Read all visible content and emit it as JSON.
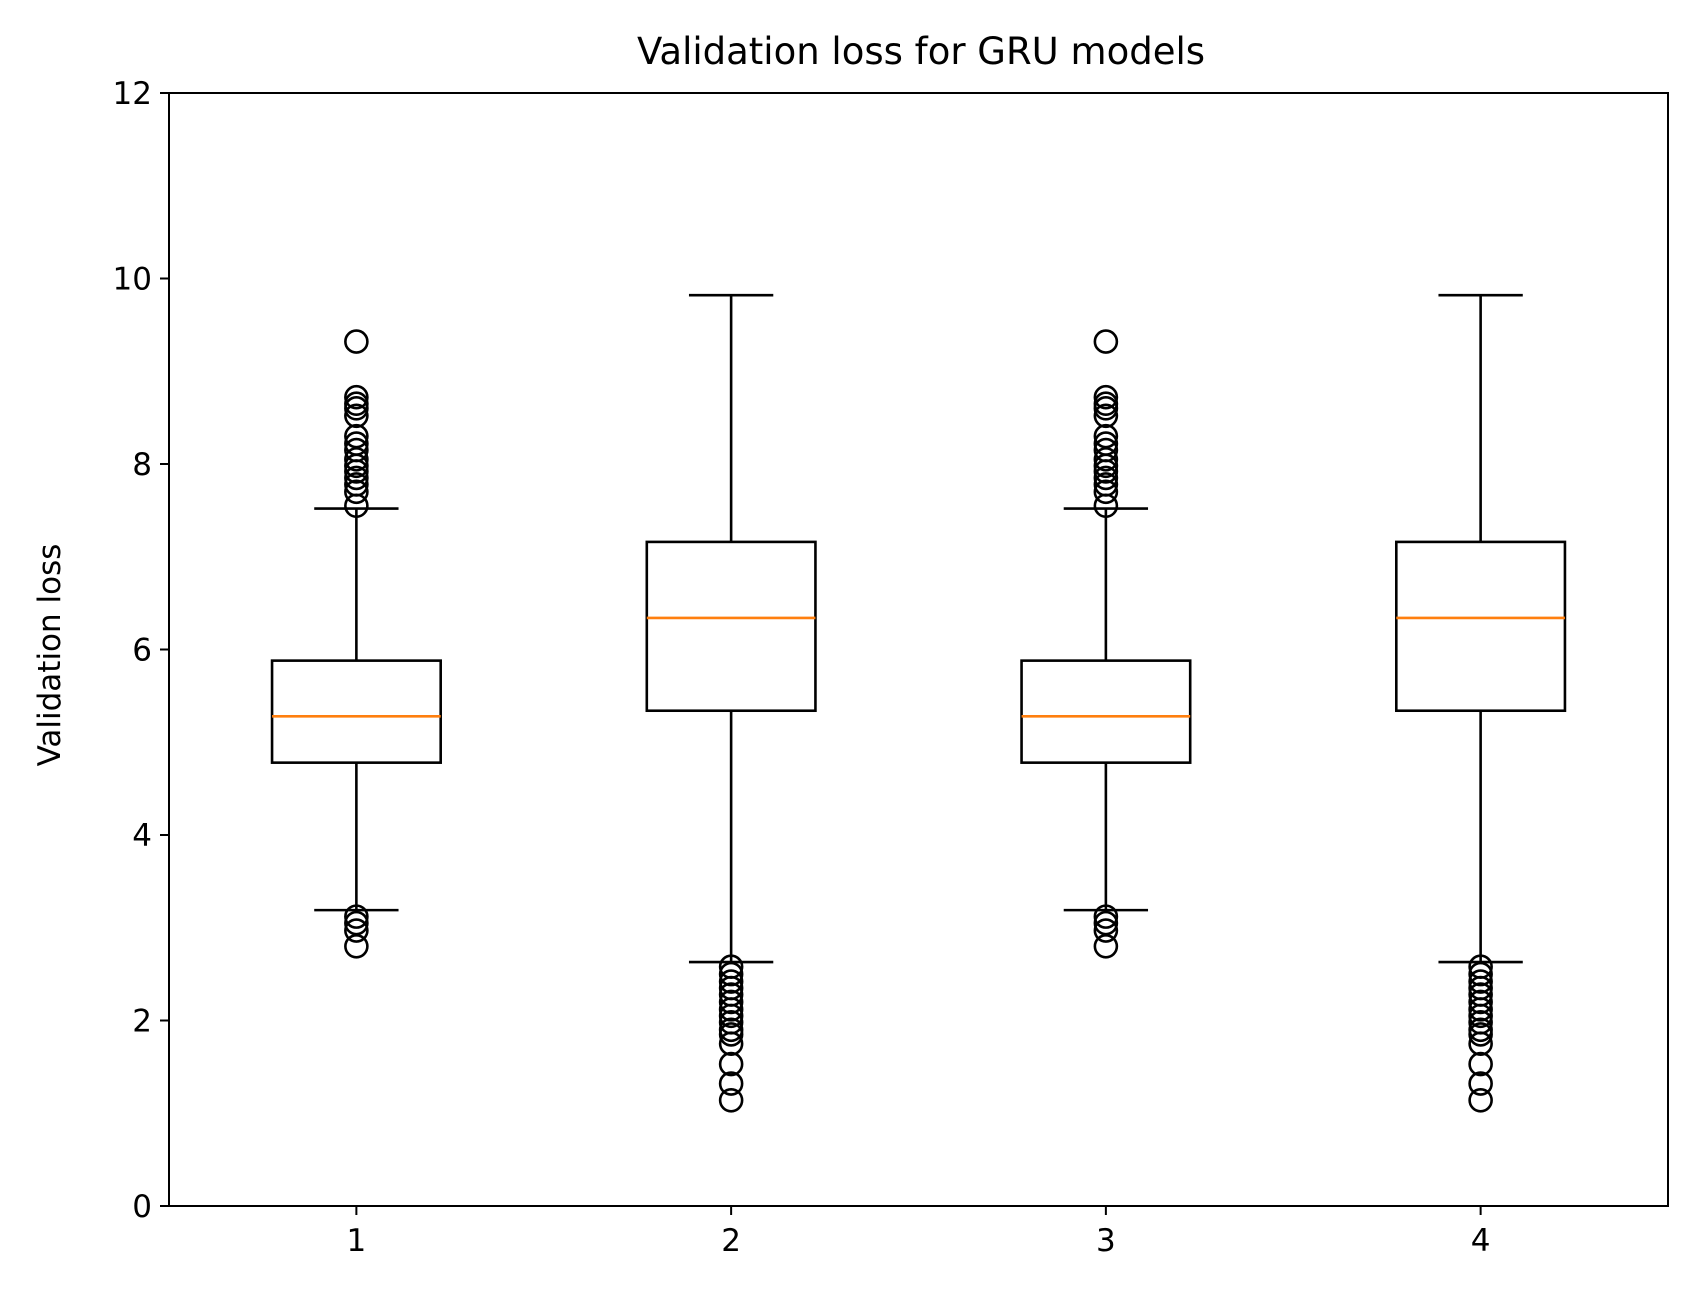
{
  "chart_data": {
    "type": "boxplot",
    "title": "Validation loss for GRU models",
    "xlabel": "",
    "ylabel": "Validation loss",
    "ylim": [
      0,
      12
    ],
    "yticks": [
      0,
      2,
      4,
      6,
      8,
      10,
      12
    ],
    "categories": [
      "1",
      "2",
      "3",
      "4"
    ],
    "grid": false,
    "colors": {
      "box": "#000000",
      "median": "#ff7f0e",
      "flier": "#000000"
    },
    "boxes": [
      {
        "category": "1",
        "whisker_low": 3.19,
        "q1": 4.78,
        "median": 5.28,
        "q3": 5.88,
        "whisker_high": 7.52,
        "fliers": [
          9.32,
          8.72,
          8.65,
          8.6,
          8.52,
          8.3,
          8.22,
          8.15,
          8.05,
          7.98,
          7.92,
          7.85,
          7.78,
          7.7,
          7.55,
          3.12,
          3.05,
          2.97,
          2.8
        ]
      },
      {
        "category": "2",
        "whisker_low": 2.63,
        "q1": 5.34,
        "median": 6.34,
        "q3": 7.16,
        "whisker_high": 9.82,
        "fliers": [
          2.58,
          2.5,
          2.42,
          2.35,
          2.28,
          2.2,
          2.12,
          2.05,
          1.98,
          1.9,
          1.85,
          1.75,
          1.53,
          1.32,
          1.14
        ]
      },
      {
        "category": "3",
        "whisker_low": 3.19,
        "q1": 4.78,
        "median": 5.28,
        "q3": 5.88,
        "whisker_high": 7.52,
        "fliers": [
          9.32,
          8.72,
          8.65,
          8.6,
          8.52,
          8.3,
          8.22,
          8.15,
          8.05,
          7.98,
          7.92,
          7.85,
          7.78,
          7.7,
          7.55,
          3.12,
          3.05,
          2.97,
          2.8
        ]
      },
      {
        "category": "4",
        "whisker_low": 2.63,
        "q1": 5.34,
        "median": 6.34,
        "q3": 7.16,
        "whisker_high": 9.82,
        "fliers": [
          2.58,
          2.5,
          2.42,
          2.35,
          2.28,
          2.2,
          2.12,
          2.05,
          1.98,
          1.9,
          1.85,
          1.75,
          1.53,
          1.32,
          1.14
        ]
      }
    ]
  }
}
